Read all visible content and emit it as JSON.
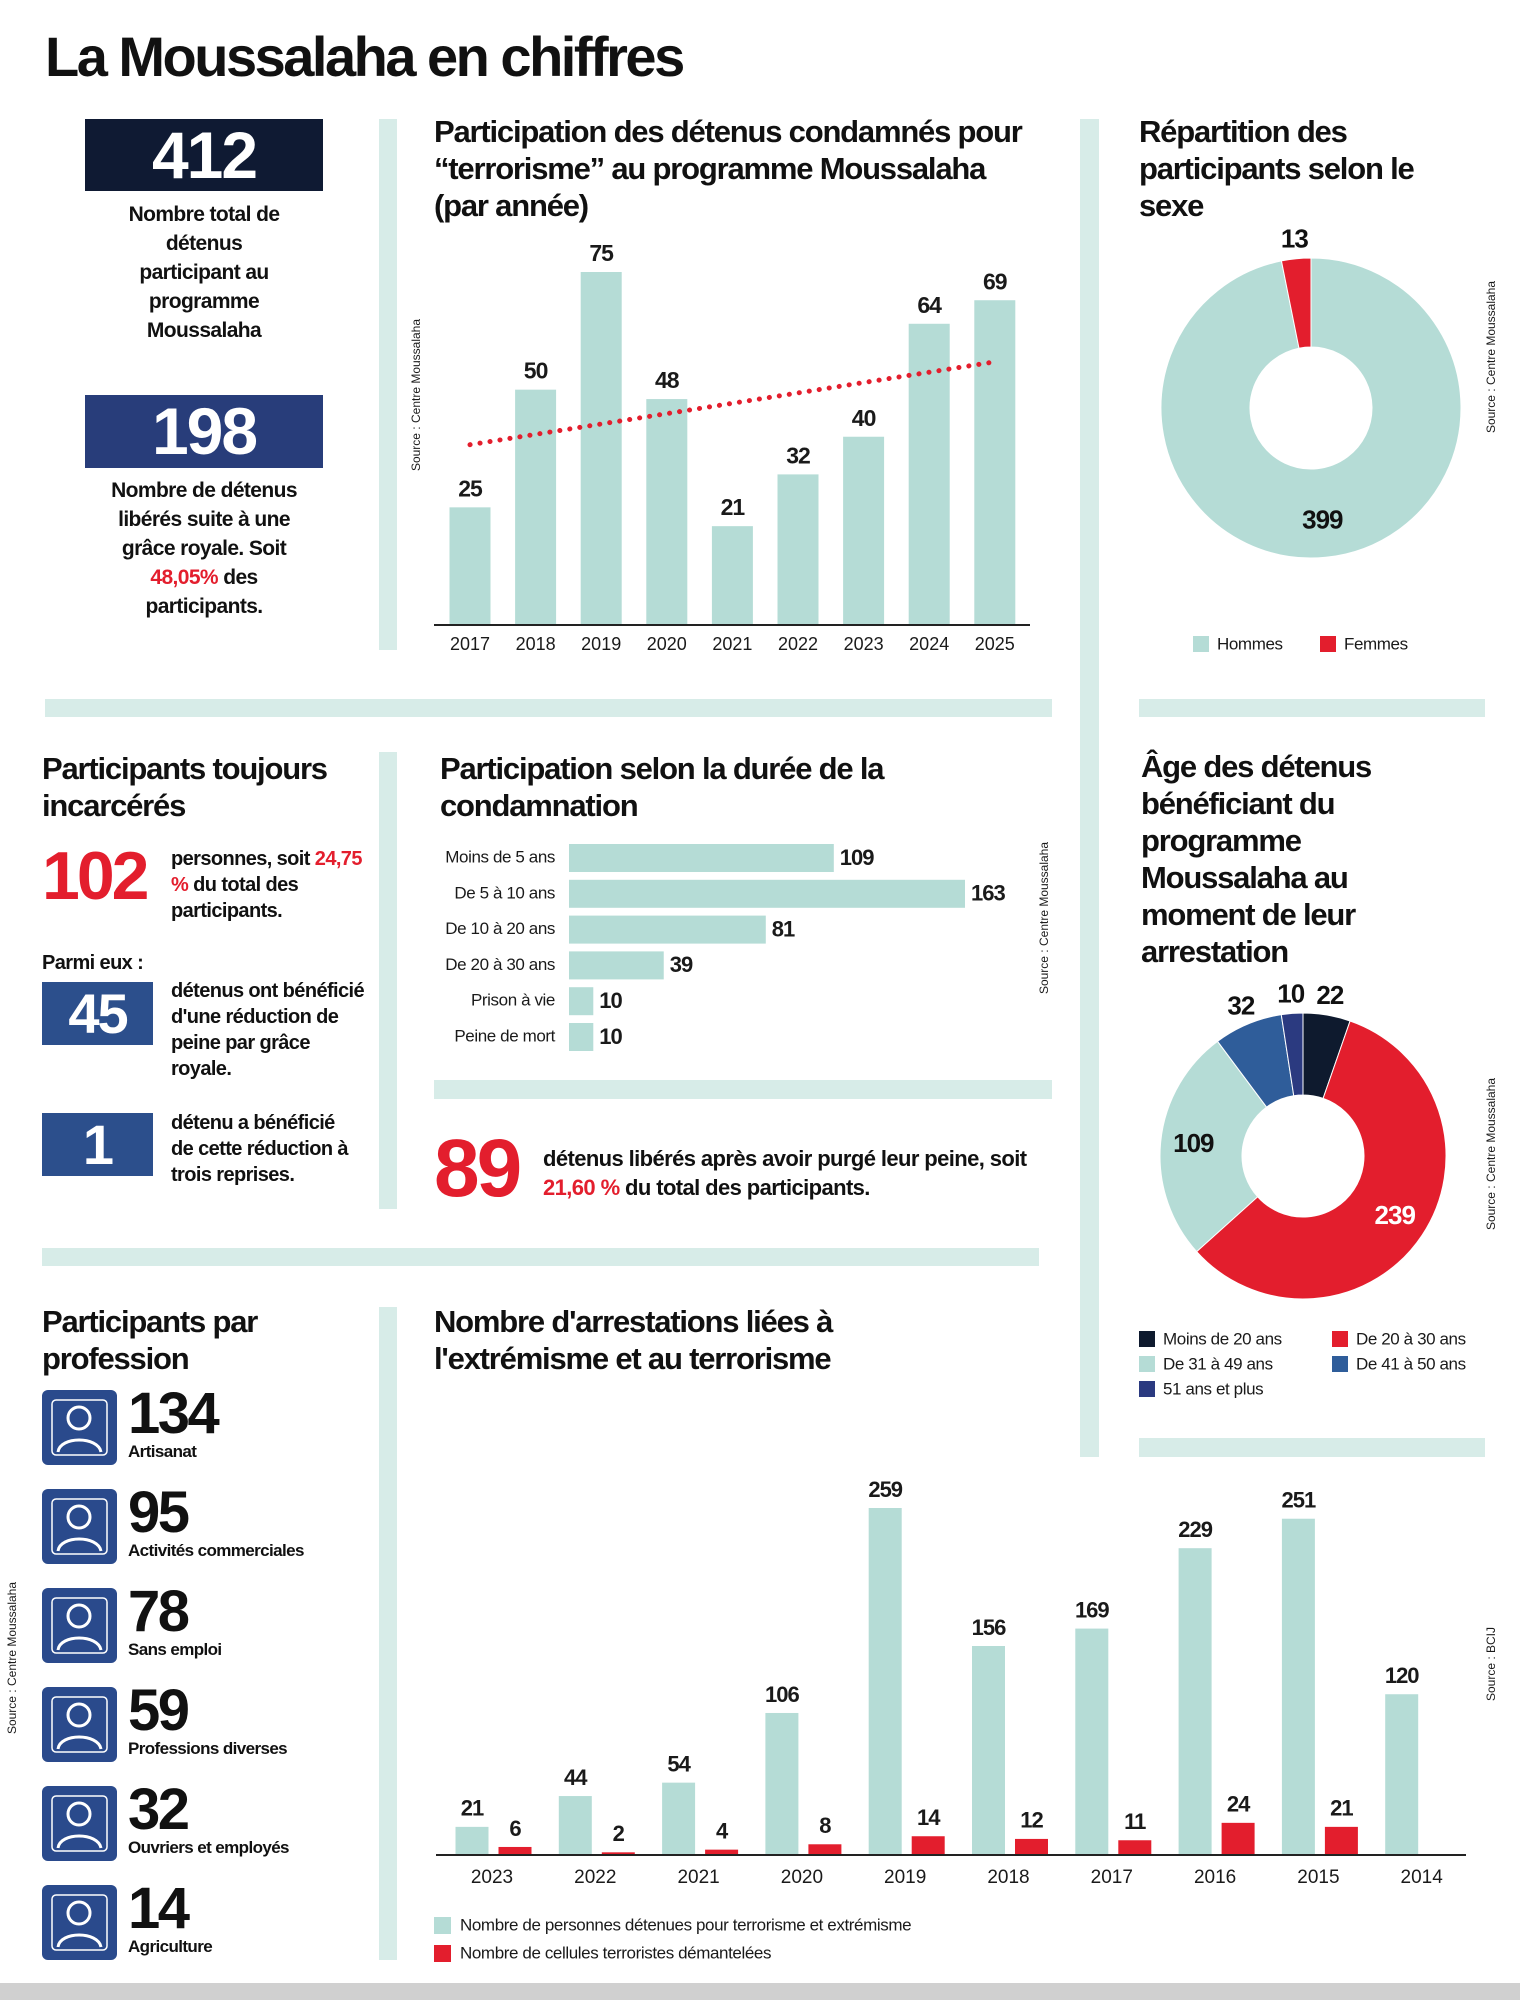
{
  "title": "La Moussalaha en chiffres",
  "kpis": [
    {
      "value": 412,
      "text": "Nombre total de détenus participant au programme Moussalaha"
    },
    {
      "value": 198,
      "text": "Nombre de détenus libérés suite à une grâce royale. Soit",
      "highlight": "48,05%",
      "text_end": "des participants."
    }
  ],
  "incarcerated": {
    "title": "Participants toujours incarcérés",
    "value": 102,
    "text": "personnes, soit",
    "highlight": "24,75 %",
    "text_end": "du total des participants.",
    "subtitle": "Parmi eux :",
    "items": [
      {
        "value": 45,
        "text": "détenus ont bénéficié d'une réduction de peine par grâce royale."
      },
      {
        "value": 1,
        "text": "détenu a bénéficié de cette réduction à trois reprises."
      }
    ]
  },
  "released": {
    "value": 89,
    "text": "détenus libérés après avoir purgé leur peine, soit",
    "highlight": "21,60 %",
    "text_end": "du total des participants."
  },
  "professions": {
    "title": "Participants par profession",
    "source": "Source : Centre Moussalaha",
    "items": [
      {
        "value": 134,
        "label": "Artisanat"
      },
      {
        "value": 95,
        "label": "Activités commerciales"
      },
      {
        "value": 78,
        "label": "Sans emploi"
      },
      {
        "value": 59,
        "label": "Professions diverses"
      },
      {
        "value": 32,
        "label": "Ouvriers et employés"
      },
      {
        "value": 14,
        "label": "Agriculture"
      }
    ]
  },
  "chart_data": [
    {
      "type": "bar",
      "title": "Participation des détenus condamnés pour “terrorisme” au programme Moussalaha (par année)",
      "source": "Source : Centre Moussalaha",
      "categories": [
        "2017",
        "2018",
        "2019",
        "2020",
        "2021",
        "2022",
        "2023",
        "2024",
        "2025"
      ],
      "values": [
        25,
        50,
        75,
        48,
        21,
        32,
        40,
        64,
        69
      ],
      "color": "#b5dcd6",
      "trendline": true,
      "trendline_color": "#e31e2d"
    },
    {
      "type": "donut",
      "title": "Répartition des participants selon le sexe",
      "source": "Source : Centre Moussalaha",
      "categories": [
        "Hommes",
        "Femmes"
      ],
      "values": [
        399,
        13
      ],
      "colors": [
        "#b5dcd6",
        "#e31e2d"
      ],
      "legend": "bottom"
    },
    {
      "type": "barh",
      "title": "Participation selon la durée de la condamnation",
      "source": "Source : Centre Moussalaha",
      "categories": [
        "Moins de 5 ans",
        "De 5 à 10 ans",
        "De 10 à 20 ans",
        "De 20 à 30 ans",
        "Prison à vie",
        "Peine de mort"
      ],
      "values": [
        109,
        163,
        81,
        39,
        10,
        10
      ],
      "color": "#b5dcd6"
    },
    {
      "type": "donut",
      "title": "Âge des détenus bénéficiant du programme Moussalaha au moment de leur arrestation",
      "source": "Source : Centre Moussalaha",
      "categories": [
        "Moins de 20 ans",
        "De 20 à 30 ans",
        "De 31 à 49 ans",
        "De 41 à 50 ans",
        "51 ans et plus"
      ],
      "values": [
        22,
        239,
        109,
        32,
        10
      ],
      "colors": [
        "#0e1a2e",
        "#e31e2d",
        "#b5dcd6",
        "#2f5d9a",
        "#2b3a80"
      ],
      "legend": "bottom"
    },
    {
      "type": "grouped_bar",
      "title": "Nombre d'arrestations liées à l'extrémisme et au terrorisme",
      "source": "Source : BCIJ",
      "categories": [
        "2023",
        "2022",
        "2021",
        "2020",
        "2019",
        "2018",
        "2017",
        "2016",
        "2015",
        "2014"
      ],
      "series": [
        {
          "name": "Nombre de personnes détenues pour terrorisme et extrémisme",
          "color": "#b5dcd6",
          "values": [
            21,
            44,
            54,
            106,
            259,
            156,
            169,
            229,
            251,
            120
          ]
        },
        {
          "name": "Nombre de cellules terroristes démantelées",
          "color": "#e31e2d",
          "values": [
            6,
            2,
            4,
            8,
            14,
            12,
            11,
            24,
            21,
            null
          ]
        }
      ]
    }
  ]
}
